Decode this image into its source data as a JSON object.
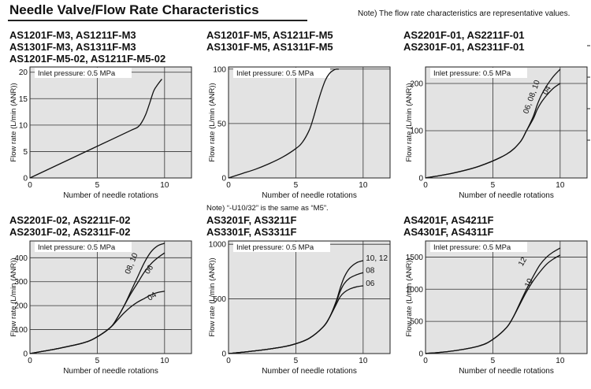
{
  "header": {
    "title": "Needle Valve/Flow Rate Characteristics",
    "note": "Note) The flow rate characteristics are representative values."
  },
  "midnote": "Note) “-U10/32” is the same as “M5”.",
  "chart_data": [
    {
      "type": "line",
      "title": "AS1201F-M3, AS1211F-M3\nAS1301F-M3, AS1311F-M3\nAS1201F-M5-02, AS1211F-M5-02",
      "annotation": "Inlet pressure: 0.5 MPa",
      "xlabel": "Number of needle rotations",
      "ylabel": "Flow rate (L/min (ANR))",
      "xlim": [
        0,
        12
      ],
      "ylim": [
        0,
        21
      ],
      "xticks": [
        0,
        5,
        10
      ],
      "yticks": [
        0,
        5,
        10,
        15,
        20
      ],
      "xtick_labels": [
        "0",
        "5",
        "10"
      ],
      "ytick_labels": [
        "0",
        "5",
        "10",
        "15",
        "20"
      ],
      "grid": true,
      "series": [
        {
          "x": [
            0,
            2,
            4,
            6,
            7.5,
            8.0,
            8.3,
            8.6,
            8.9,
            9.2,
            9.5,
            9.8
          ],
          "y": [
            0,
            2.4,
            4.8,
            7.2,
            9.0,
            9.6,
            10.5,
            12.0,
            14.2,
            16.5,
            17.7,
            18.7
          ]
        }
      ]
    },
    {
      "type": "line",
      "title": "AS1201F-M5, AS1211F-M5\nAS1301F-M5, AS1311F-M5",
      "annotation": "Inlet pressure: 0.5 MPa",
      "xlabel": "Number of needle rotations",
      "ylabel": "Flow rate (L/min (ANR))",
      "xlim": [
        0,
        12
      ],
      "ylim": [
        0,
        102
      ],
      "xticks": [
        0,
        5,
        10
      ],
      "yticks": [
        0,
        50,
        100
      ],
      "xtick_labels": [
        "0",
        "5",
        "10"
      ],
      "ytick_labels": [
        "0",
        "50",
        "100"
      ],
      "grid": true,
      "series": [
        {
          "x": [
            0,
            1,
            2,
            3,
            4,
            5,
            5.5,
            6,
            6.3,
            6.6,
            6.9,
            7.2,
            7.5,
            7.8,
            8.0,
            8.2
          ],
          "y": [
            0,
            4,
            8,
            13,
            19,
            27,
            33,
            44,
            55,
            68,
            80,
            90,
            96,
            99,
            100,
            100
          ]
        }
      ]
    },
    {
      "type": "line",
      "title": "AS2201F-01, AS2211F-01\nAS2301F-01, AS2311F-01",
      "annotation": "Inlet pressure: 0.5 MPa",
      "xlabel": "Number of needle rotations",
      "ylabel": "Flow rate (L/min (ANR))",
      "xlim": [
        0,
        12
      ],
      "ylim": [
        0,
        235
      ],
      "xticks": [
        0,
        5,
        10
      ],
      "yticks": [
        0,
        100,
        200
      ],
      "xtick_labels": [
        "0",
        "5",
        "10"
      ],
      "ytick_labels": [
        "0",
        "100",
        "200"
      ],
      "grid": true,
      "series": [
        {
          "name": "06, 08, 10",
          "x": [
            0,
            2,
            4,
            6,
            7,
            7.5,
            8,
            8.3,
            8.6,
            9,
            9.5,
            10
          ],
          "y": [
            0,
            10,
            25,
            50,
            75,
            100,
            130,
            155,
            175,
            195,
            215,
            230
          ]
        },
        {
          "name": "04",
          "x": [
            0,
            2,
            4,
            6,
            7,
            7.5,
            8,
            8.3,
            8.6,
            9,
            9.5,
            10
          ],
          "y": [
            0,
            10,
            25,
            50,
            75,
            100,
            125,
            145,
            160,
            175,
            190,
            200
          ]
        }
      ],
      "labels": [
        {
          "text": "06, 08, 10",
          "x": 7.6,
          "y": 135,
          "rotate": -70
        },
        {
          "text": "04",
          "x": 9.0,
          "y": 175,
          "rotate": -60
        }
      ]
    },
    {
      "type": "line",
      "title": "AS2201F-02, AS2211F-02\nAS2301F-02, AS2311F-02",
      "annotation": "Inlet pressure: 0.5 MPa",
      "xlabel": "Number of needle rotations",
      "ylabel": "Flow rate (L/min (ANR))",
      "xlim": [
        0,
        12
      ],
      "ylim": [
        0,
        470
      ],
      "xticks": [
        0,
        5,
        10
      ],
      "yticks": [
        0,
        100,
        200,
        300,
        400
      ],
      "xtick_labels": [
        "0",
        "5",
        "10"
      ],
      "ytick_labels": [
        "0",
        "100",
        "200",
        "300",
        "400"
      ],
      "grid": true,
      "series": [
        {
          "name": "08, 10",
          "x": [
            0,
            2,
            4,
            5,
            6,
            6.5,
            7,
            7.5,
            8,
            8.5,
            9,
            9.5,
            10
          ],
          "y": [
            0,
            20,
            45,
            70,
            110,
            150,
            200,
            260,
            320,
            380,
            425,
            450,
            460
          ]
        },
        {
          "name": "06",
          "x": [
            0,
            2,
            4,
            5,
            6,
            6.5,
            7,
            7.5,
            8,
            8.5,
            9,
            9.5,
            10
          ],
          "y": [
            0,
            20,
            45,
            70,
            110,
            150,
            200,
            250,
            295,
            340,
            375,
            400,
            420
          ]
        },
        {
          "name": "04",
          "x": [
            0,
            2,
            4,
            5,
            6,
            6.5,
            7,
            7.5,
            8,
            8.5,
            9,
            9.5,
            10
          ],
          "y": [
            0,
            20,
            45,
            70,
            110,
            140,
            170,
            195,
            215,
            230,
            245,
            255,
            260
          ]
        }
      ],
      "labels": [
        {
          "text": "08, 10",
          "x": 7.4,
          "y": 330,
          "rotate": -68
        },
        {
          "text": "06",
          "x": 8.8,
          "y": 330,
          "rotate": -55
        },
        {
          "text": "04",
          "x": 8.9,
          "y": 220,
          "rotate": -35
        }
      ]
    },
    {
      "type": "line",
      "title": "AS3201F, AS3211F\nAS3301F, AS3311F",
      "annotation": "Inlet pressure: 0.5 MPa",
      "xlabel": "Number of needle rotations",
      "ylabel": "Flow rate (L/min (ANR))",
      "xlim": [
        0,
        12
      ],
      "ylim": [
        0,
        1030
      ],
      "xticks": [
        0,
        5,
        10
      ],
      "yticks": [
        0,
        500,
        1000
      ],
      "xtick_labels": [
        "0",
        "5",
        "10"
      ],
      "ytick_labels": [
        "0",
        "500",
        "1000"
      ],
      "grid": true,
      "series": [
        {
          "name": "10, 12",
          "x": [
            0,
            2,
            4,
            5,
            6,
            7,
            7.5,
            8,
            8.3,
            8.6,
            9,
            9.5,
            10
          ],
          "y": [
            0,
            25,
            60,
            90,
            140,
            240,
            330,
            480,
            600,
            700,
            780,
            830,
            850
          ]
        },
        {
          "name": "08",
          "x": [
            0,
            2,
            4,
            5,
            6,
            7,
            7.5,
            8,
            8.3,
            8.6,
            9,
            9.5,
            10
          ],
          "y": [
            0,
            25,
            60,
            90,
            140,
            240,
            330,
            470,
            570,
            640,
            690,
            720,
            740
          ]
        },
        {
          "name": "06",
          "x": [
            0,
            2,
            4,
            5,
            6,
            7,
            7.5,
            8,
            8.3,
            8.6,
            9,
            9.5,
            10
          ],
          "y": [
            0,
            25,
            60,
            90,
            140,
            240,
            330,
            450,
            520,
            560,
            590,
            610,
            620
          ]
        }
      ],
      "labels": [
        {
          "text": "10, 12",
          "x": 10.2,
          "y": 850,
          "rotate": 0
        },
        {
          "text": "08",
          "x": 10.2,
          "y": 740,
          "rotate": 0
        },
        {
          "text": "06",
          "x": 10.2,
          "y": 620,
          "rotate": 0
        }
      ]
    },
    {
      "type": "line",
      "title": "AS4201F, AS4211F\nAS4301F, AS4311F",
      "annotation": "Inlet pressure: 0.5 MPa",
      "xlabel": "Number of needle rotations",
      "ylabel": "Flow rate (L/min (ANR))",
      "xlim": [
        0,
        12
      ],
      "ylim": [
        0,
        1750
      ],
      "xticks": [
        0,
        5,
        10
      ],
      "yticks": [
        0,
        500,
        1000,
        1500
      ],
      "xtick_labels": [
        "0",
        "5",
        "10"
      ],
      "ytick_labels": [
        "0",
        "500",
        "1000",
        "1500"
      ],
      "grid": true,
      "series": [
        {
          "name": "12",
          "x": [
            0,
            2,
            4,
            5,
            6,
            6.5,
            7,
            7.5,
            8,
            8.5,
            9,
            9.5,
            10
          ],
          "y": [
            0,
            40,
            120,
            220,
            400,
            560,
            780,
            1000,
            1200,
            1380,
            1500,
            1580,
            1640
          ]
        },
        {
          "name": "10",
          "x": [
            0,
            2,
            4,
            5,
            6,
            6.5,
            7,
            7.5,
            8,
            8.5,
            9,
            9.5,
            10
          ],
          "y": [
            0,
            40,
            120,
            220,
            400,
            560,
            760,
            960,
            1130,
            1270,
            1390,
            1470,
            1530
          ]
        }
      ],
      "labels": [
        {
          "text": "12",
          "x": 7.2,
          "y": 1350,
          "rotate": -60
        },
        {
          "text": "10",
          "x": 7.7,
          "y": 1020,
          "rotate": -65
        }
      ]
    }
  ]
}
